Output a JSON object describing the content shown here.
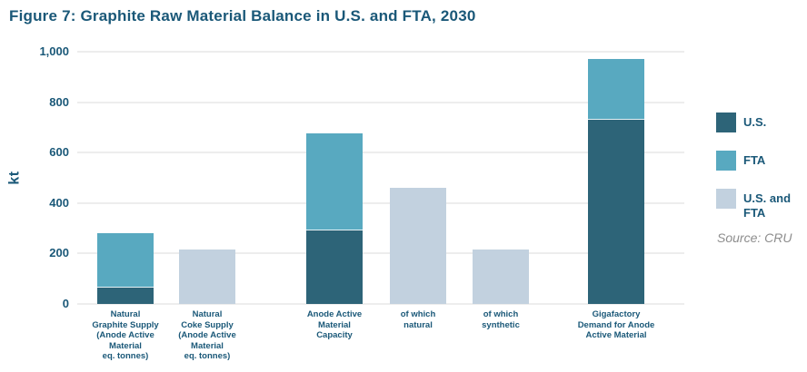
{
  "figure": {
    "title": "Figure 7: Graphite Raw Material Balance in U.S. and FTA, 2030"
  },
  "source": {
    "text": "Source: CRU"
  },
  "legend": {
    "position": "right",
    "items": [
      {
        "label": "U.S.",
        "series": "U.S.",
        "color": "#2d6478"
      },
      {
        "label": "FTA",
        "series": "FTA",
        "color": "#58a9c0"
      },
      {
        "label": "U.S. and FTA",
        "series": "U.S. and FTA",
        "color": "#c2d1df"
      }
    ]
  },
  "colors": {
    "heading_text": "#1a5878",
    "axis_text": "#1a5878",
    "gridline": "#ededed",
    "source_text": "#8d8d8d",
    "background": "#ffffff"
  },
  "chart_data": {
    "type": "bar",
    "stacked": true,
    "title": "Figure 7: Graphite Raw Material Balance in U.S. and FTA, 2030",
    "xlabel": "",
    "ylabel": "kt",
    "ylim": [
      0,
      1000
    ],
    "grid": true,
    "legend_position": "right",
    "yticks": [
      {
        "value": 0,
        "label": "0"
      },
      {
        "value": 200,
        "label": "200"
      },
      {
        "value": 400,
        "label": "400"
      },
      {
        "value": 600,
        "label": "600"
      },
      {
        "value": 800,
        "label": "800"
      },
      {
        "value": 1000,
        "label": "1,000"
      }
    ],
    "categories": [
      {
        "label": "Natural Graphite Supply (Anode Active Material eq. tonnes)",
        "label_lines": [
          "Natural",
          "Graphite Supply",
          "(Anode Active",
          "Material",
          "eq. tonnes)"
        ]
      },
      {
        "label": "Natural Coke Supply (Anode Active Material eq. tonnes)",
        "label_lines": [
          "Natural",
          "Coke Supply",
          "(Anode Active",
          "Material",
          "eq. tonnes)"
        ]
      },
      {
        "label": "Anode Active Material Capacity",
        "label_lines": [
          "Anode Active",
          "Material",
          "Capacity"
        ]
      },
      {
        "label": "of which natural",
        "label_lines": [
          "of which",
          "natural"
        ]
      },
      {
        "label": "of which synthetic",
        "label_lines": [
          "of which",
          "synthetic"
        ]
      },
      {
        "label": "Gigafactory Demand for Anode Active Material",
        "label_lines": [
          "Gigafactory",
          "Demand for Anode",
          "Active Material"
        ]
      }
    ],
    "series": [
      {
        "name": "U.S.",
        "color": "#2d6478",
        "values": [
          65,
          0,
          290,
          0,
          0,
          730
        ]
      },
      {
        "name": "FTA",
        "color": "#58a9c0",
        "values": [
          215,
          0,
          385,
          0,
          0,
          240
        ]
      },
      {
        "name": "U.S. and FTA",
        "color": "#c2d1df",
        "values": [
          0,
          215,
          0,
          460,
          215,
          0
        ]
      }
    ],
    "totals": [
      280,
      215,
      675,
      460,
      215,
      970
    ],
    "unit": "kt"
  }
}
